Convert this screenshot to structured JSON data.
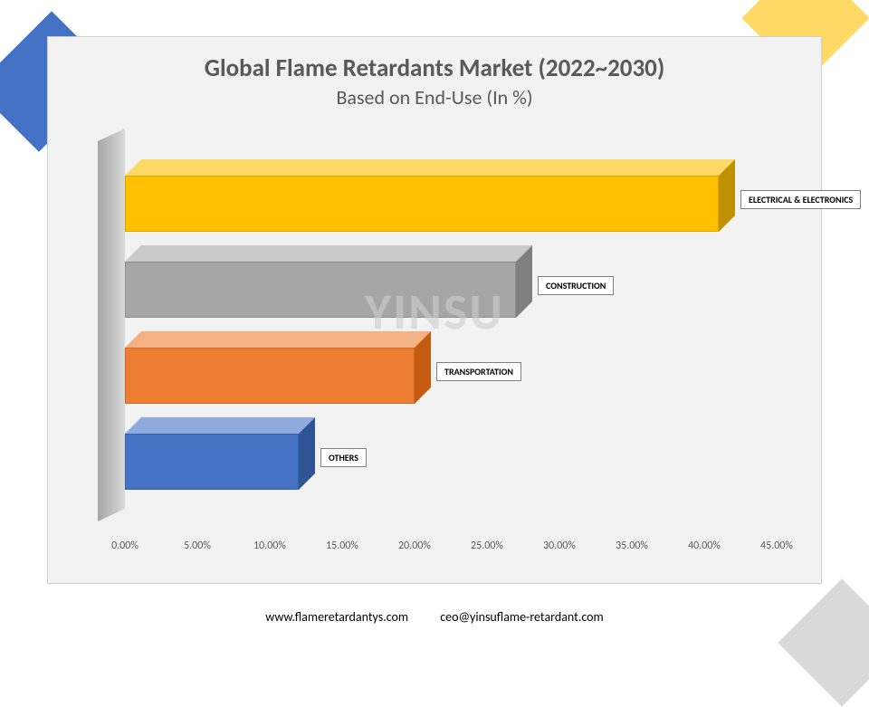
{
  "title": {
    "main": "Global Flame Retardants Market (2022~2030)",
    "sub": "Based on End-Use (In %)",
    "main_fontsize": 27,
    "sub_fontsize": 22,
    "color": "#595959"
  },
  "chart": {
    "type": "bar",
    "orientation": "horizontal",
    "style_3d": true,
    "background_color": "#f2f2f2",
    "wall_color": "#bfbfbf",
    "categories": [
      "ELECTRICAL & ELECTRONICS",
      "CONSTRUCTION",
      "TRANSPORTATION",
      "OTHERS"
    ],
    "values": [
      41.0,
      27.0,
      20.0,
      12.0
    ],
    "bar_colors_front": [
      "#ffc000",
      "#a6a6a6",
      "#ed7d31",
      "#4472c4"
    ],
    "bar_colors_top": [
      "#ffd966",
      "#c9c9c9",
      "#f4b183",
      "#8faadc"
    ],
    "bar_colors_side": [
      "#bf9000",
      "#7f7f7f",
      "#c55a11",
      "#2f5597"
    ],
    "xlim": [
      0,
      45
    ],
    "xtick_step": 5,
    "xtick_format": "0.00%",
    "xtick_labels": [
      "0.00%",
      "5.00%",
      "10.00%",
      "15.00%",
      "20.00%",
      "25.00%",
      "30.00%",
      "35.00%",
      "40.00%",
      "45.00%"
    ],
    "label_fontsize": 10,
    "tick_fontsize": 12,
    "tick_color": "#595959"
  },
  "watermark": "YINSU",
  "footer": {
    "url": "www.flameretardantys.com",
    "email": "ceo@yinsuflame-retardant.com"
  },
  "decorations": {
    "top_left_color": "#4472c4",
    "top_right_color": "#ffd966",
    "bottom_right_color": "#d9d9d9"
  }
}
